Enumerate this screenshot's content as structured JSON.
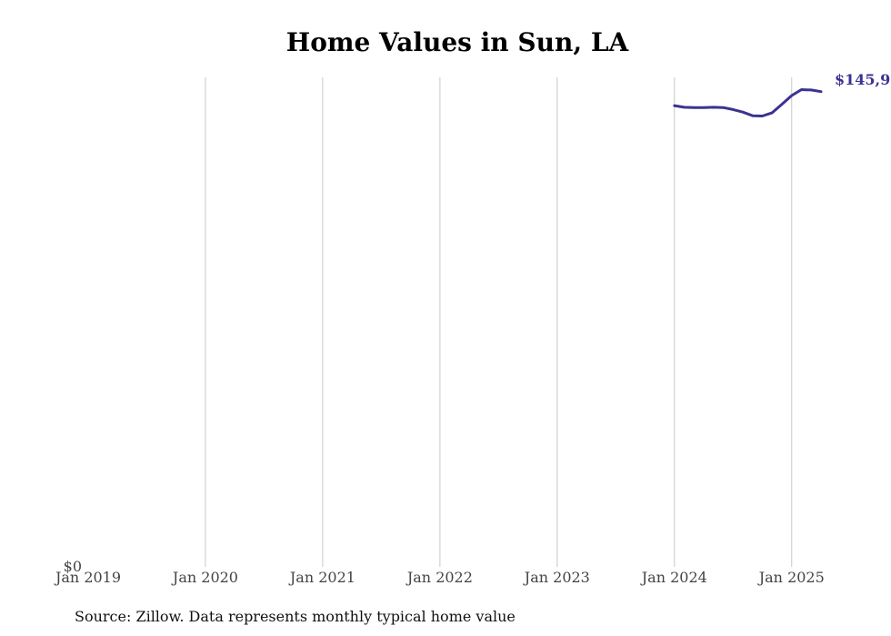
{
  "chart_data": {
    "type": "line",
    "title": "Home Values in Sun, LA",
    "source": "Source: Zillow. Data represents monthly typical home value",
    "xlabel": "",
    "ylabel": "",
    "x_ticks": [
      "Jan 2019",
      "Jan 2020",
      "Jan 2021",
      "Jan 2022",
      "Jan 2023",
      "Jan 2024",
      "Jan 2025"
    ],
    "y_ticks": [
      "$0"
    ],
    "ylim": [
      0,
      150000
    ],
    "xlim": [
      "2019-01",
      "2025-04"
    ],
    "grid": "vertical",
    "line_color": "#3b3391",
    "end_label": "$145,9",
    "series": [
      {
        "x": [
          "2024-01",
          "2024-02",
          "2024-03",
          "2024-04",
          "2024-05",
          "2024-06",
          "2024-07",
          "2024-08",
          "2024-09",
          "2024-10",
          "2024-11",
          "2024-12",
          "2025-01",
          "2025-02",
          "2025-03",
          "2025-04"
        ],
        "values": [
          141600,
          141100,
          141000,
          141000,
          141100,
          141000,
          140400,
          139600,
          138500,
          138400,
          139400,
          142000,
          144700,
          146500,
          146400,
          145900
        ]
      }
    ]
  }
}
